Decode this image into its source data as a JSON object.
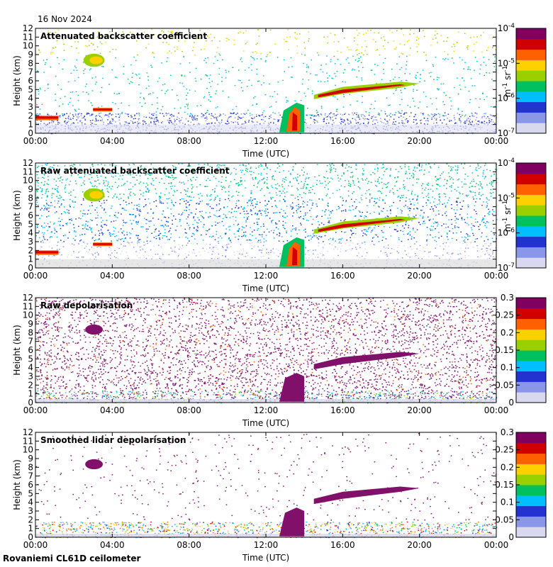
{
  "header": {
    "date": "16 Nov 2024"
  },
  "footer": {
    "site": "Rovaniemi CL61D ceilometer"
  },
  "colors": {
    "scale": [
      "#d8d8ee",
      "#8a96e8",
      "#2233d0",
      "#00bfff",
      "#00c060",
      "#9ad000",
      "#ffd000",
      "#ff6000",
      "#d00000",
      "#800060"
    ],
    "depol": "#80106a",
    "missing": "#dddddd"
  },
  "chart_data": [
    {
      "type": "heatmap",
      "title": "Attenuated backscatter coefficient",
      "xlabel": "Time (UTC)",
      "ylabel": "Height (km)",
      "x_ticks": [
        "00:00",
        "04:00",
        "08:00",
        "12:00",
        "16:00",
        "20:00",
        "00:00"
      ],
      "y_ticks": [
        "0",
        "1",
        "2",
        "3",
        "4",
        "5",
        "6",
        "7",
        "8",
        "9",
        "10",
        "11",
        "12"
      ],
      "ylim": [
        0,
        12
      ],
      "colorbar": {
        "scale": "log",
        "range": [
          1e-07,
          0.0001
        ],
        "tick_labels": [
          [
            "10",
            "-7"
          ],
          [
            "10",
            "-6"
          ],
          [
            "10",
            "-5"
          ],
          [
            "10",
            "-4"
          ]
        ],
        "unit": [
          "m",
          "-1",
          " sr",
          "-1"
        ]
      },
      "features": [
        {
          "t0": 2.5,
          "t1": 3.6,
          "h0": 7.6,
          "h1": 9.1,
          "kind": "cloud"
        },
        {
          "t0": 0.0,
          "t1": 1.2,
          "h0": 1.5,
          "h1": 2.0,
          "kind": "layer"
        },
        {
          "t0": 3.0,
          "t1": 4.0,
          "h0": 2.5,
          "h1": 2.9,
          "kind": "layer"
        },
        {
          "t0": 12.7,
          "t1": 14.0,
          "h0": 0.1,
          "h1": 3.5,
          "kind": "cloud"
        },
        {
          "t0": 14.5,
          "t1": 20.0,
          "h0": 4.0,
          "h1": 6.0,
          "kind": "cloud"
        }
      ]
    },
    {
      "type": "heatmap",
      "title": "Raw attenuated backscatter coefficient",
      "xlabel": "Time (UTC)",
      "ylabel": "Height (km)",
      "x_ticks": [
        "00:00",
        "04:00",
        "08:00",
        "12:00",
        "16:00",
        "20:00",
        "00:00"
      ],
      "y_ticks": [
        "0",
        "1",
        "2",
        "3",
        "4",
        "5",
        "6",
        "7",
        "8",
        "9",
        "10",
        "11",
        "12"
      ],
      "ylim": [
        0,
        12
      ],
      "colorbar": {
        "scale": "log",
        "range": [
          1e-07,
          0.0001
        ],
        "tick_labels": [
          [
            "10",
            "-7"
          ],
          [
            "10",
            "-6"
          ],
          [
            "10",
            "-5"
          ],
          [
            "10",
            "-4"
          ]
        ],
        "unit": [
          "m",
          "-1",
          " sr",
          "-1"
        ]
      },
      "features": [
        {
          "t0": 2.5,
          "t1": 3.6,
          "h0": 7.6,
          "h1": 9.1,
          "kind": "cloud"
        },
        {
          "t0": 0.0,
          "t1": 1.2,
          "h0": 1.5,
          "h1": 2.0,
          "kind": "layer"
        },
        {
          "t0": 3.0,
          "t1": 4.0,
          "h0": 2.5,
          "h1": 2.9,
          "kind": "layer"
        },
        {
          "t0": 12.7,
          "t1": 14.0,
          "h0": 0.1,
          "h1": 3.5,
          "kind": "cloud"
        },
        {
          "t0": 14.5,
          "t1": 20.0,
          "h0": 4.0,
          "h1": 6.0,
          "kind": "cloud"
        }
      ]
    },
    {
      "type": "heatmap",
      "title": "Raw depolarisation",
      "xlabel": "Time (UTC)",
      "ylabel": "Height (km)",
      "x_ticks": [
        "00:00",
        "04:00",
        "08:00",
        "12:00",
        "16:00",
        "20:00",
        "00:00"
      ],
      "y_ticks": [
        "0",
        "1",
        "2",
        "3",
        "4",
        "5",
        "6",
        "7",
        "8",
        "9",
        "10",
        "11",
        "12"
      ],
      "ylim": [
        0,
        12
      ],
      "colorbar": {
        "scale": "linear",
        "range": [
          0,
          0.3
        ],
        "tick_labels": [
          "0",
          "0.05",
          "0.1",
          "0.15",
          "0.2",
          "0.25",
          "0.3"
        ]
      },
      "features": [
        {
          "t0": 2.5,
          "t1": 3.6,
          "h0": 7.6,
          "h1": 9.1,
          "kind": "cloud"
        },
        {
          "t0": 12.7,
          "t1": 14.0,
          "h0": 0.1,
          "h1": 3.5,
          "kind": "cloud"
        },
        {
          "t0": 14.5,
          "t1": 20.0,
          "h0": 4.0,
          "h1": 6.0,
          "kind": "cloud"
        }
      ]
    },
    {
      "type": "heatmap",
      "title": "Smoothed lidar depolarisation",
      "xlabel": "Time (UTC)",
      "ylabel": "Height (km)",
      "x_ticks": [
        "00:00",
        "04:00",
        "08:00",
        "12:00",
        "16:00",
        "20:00",
        "00:00"
      ],
      "y_ticks": [
        "0",
        "1",
        "2",
        "3",
        "4",
        "5",
        "6",
        "7",
        "8",
        "9",
        "10",
        "11",
        "12"
      ],
      "ylim": [
        0,
        12
      ],
      "colorbar": {
        "scale": "linear",
        "range": [
          0,
          0.3
        ],
        "tick_labels": [
          "0",
          "0.05",
          "0.1",
          "0.15",
          "0.2",
          "0.25",
          "0.3"
        ]
      },
      "features": [
        {
          "t0": 2.5,
          "t1": 3.6,
          "h0": 7.6,
          "h1": 9.1,
          "kind": "cloud"
        },
        {
          "t0": 12.7,
          "t1": 14.0,
          "h0": 0.1,
          "h1": 3.5,
          "kind": "cloud"
        },
        {
          "t0": 14.5,
          "t1": 20.0,
          "h0": 4.0,
          "h1": 6.0,
          "kind": "cloud"
        }
      ]
    }
  ]
}
